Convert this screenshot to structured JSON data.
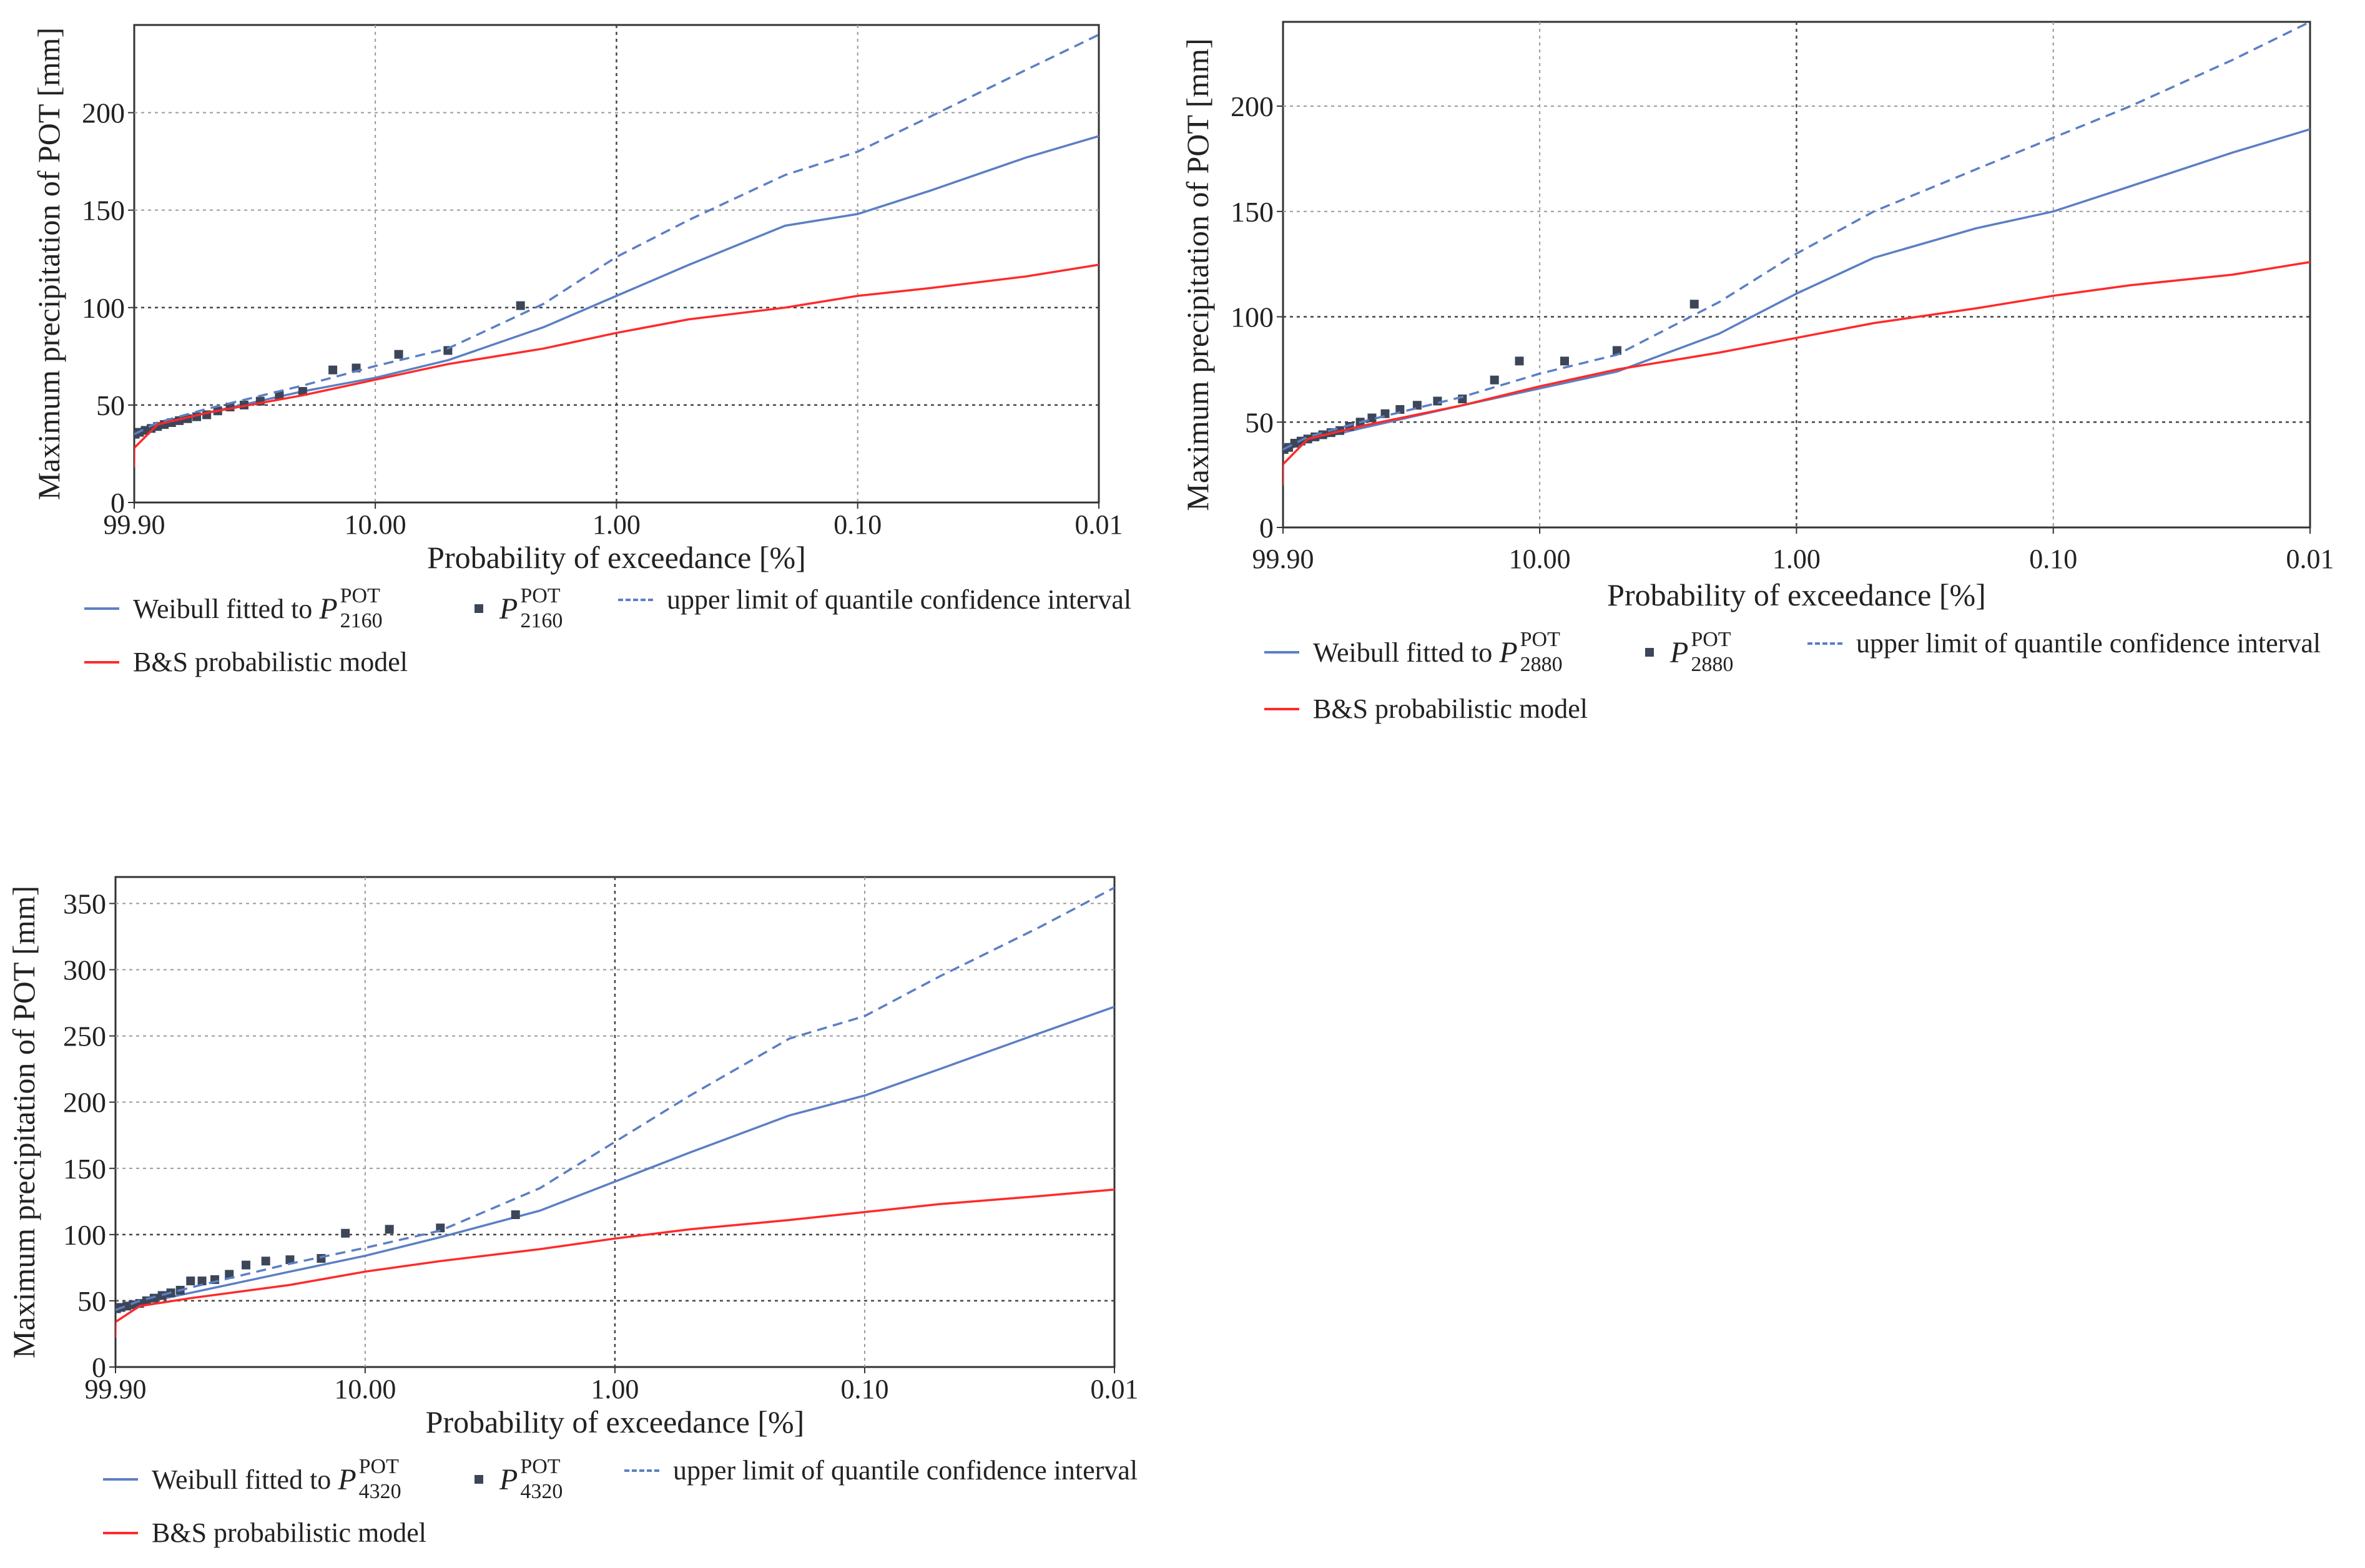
{
  "colors": {
    "weibull": "#5b7fc4",
    "bs_model": "#ff2a2a",
    "ci_upper": "#5b7fc4",
    "points": "#3c4658",
    "grid": "#9a9a9a"
  },
  "x_ticks": [
    "99.90",
    "10.00",
    "1.00",
    "0.10",
    "0.01"
  ],
  "panels": [
    {
      "legend": {
        "weibull_label": "Weibull",
        "weibull_fitted": "fitted to",
        "symbol": "P",
        "sup": "POT",
        "sub": "2160",
        "ci_label": "upper limit of quantile confidence interval",
        "bs_label": "B&S probabilistic model"
      },
      "chart_data": {
        "type": "line",
        "xlabel": "Probability of exceedance [%]",
        "ylabel": "Maximum precipitation of POT [mm]",
        "xscale": "probability (Weibull paper)",
        "xlim": [
          99.9,
          0.01
        ],
        "ylim": [
          0,
          245
        ],
        "yticks": [
          0,
          50,
          100,
          150,
          200
        ],
        "grid": true,
        "series": [
          {
            "name": "Weibull fitted to P_2160^POT",
            "type": "line",
            "style": "solid",
            "x": [
              99.9,
              80,
              50,
              20,
              10,
              5,
              2,
              1,
              0.5,
              0.2,
              0.1,
              0.05,
              0.02,
              0.01
            ],
            "y": [
              34,
              40,
              46,
              57,
              64,
              73,
              90,
              106,
              122,
              142,
              148,
              160,
              177,
              188
            ]
          },
          {
            "name": "P_2160^POT",
            "type": "scatter",
            "x": [
              99,
              95,
              90,
              85,
              80,
              75,
              70,
              65,
              60,
              55,
              50,
              45,
              40,
              35,
              30,
              25,
              20,
              15,
              12,
              8,
              5,
              2.5
            ],
            "y": [
              35,
              36,
              37,
              38,
              39,
              40,
              41,
              42,
              43,
              44,
              45,
              47,
              49,
              50,
              52,
              55,
              57,
              68,
              69,
              76,
              78,
              101
            ]
          },
          {
            "name": "upper limit of quantile confidence interval",
            "type": "line",
            "style": "dashed",
            "x": [
              99.9,
              80,
              50,
              20,
              10,
              5,
              2,
              1,
              0.5,
              0.2,
              0.1,
              0.05,
              0.02,
              0.01
            ],
            "y": [
              35,
              41,
              48,
              60,
              70,
              79,
              102,
              126,
              145,
              168,
              180,
              198,
              222,
              240
            ]
          },
          {
            "name": "B&S probabilistic model",
            "type": "line",
            "style": "solid",
            "x": [
              99.99,
              99.9,
              80,
              50,
              20,
              10,
              5,
              2,
              1,
              0.5,
              0.2,
              0.1,
              0.05,
              0.02,
              0.01
            ],
            "y": [
              18,
              28,
              40,
              46,
              55,
              63,
              71,
              79,
              87,
              94,
              100,
              106,
              110,
              116,
              122
            ]
          }
        ]
      }
    },
    {
      "legend": {
        "weibull_label": "Weibull",
        "weibull_fitted": "fitted to",
        "symbol": "P",
        "sup": "POT",
        "sub": "2880",
        "ci_label": "upper limit of quantile confidence interval",
        "bs_label": "B&S probabilistic model"
      },
      "chart_data": {
        "type": "line",
        "xlabel": "Probability of exceedance [%]",
        "ylabel": "Maximum precipitation of POT [mm]",
        "xscale": "probability (Weibull paper)",
        "xlim": [
          99.9,
          0.01
        ],
        "ylim": [
          0,
          240
        ],
        "yticks": [
          0,
          50,
          100,
          150,
          200
        ],
        "grid": true,
        "series": [
          {
            "name": "Weibull fitted to P_2880^POT",
            "type": "line",
            "style": "solid",
            "x": [
              99.9,
              80,
              50,
              20,
              10,
              5,
              2,
              1,
              0.5,
              0.2,
              0.1,
              0.05,
              0.02,
              0.01
            ],
            "y": [
              36,
              41,
              47,
              58,
              66,
              74,
              92,
              111,
              128,
              142,
              150,
              162,
              178,
              189
            ]
          },
          {
            "name": "P_2880^POT",
            "type": "scatter",
            "x": [
              99,
              95,
              90,
              85,
              80,
              75,
              70,
              65,
              60,
              55,
              50,
              45,
              40,
              35,
              30,
              25,
              20,
              15,
              12,
              8,
              5,
              2.5
            ],
            "y": [
              37,
              38,
              40,
              41,
              42,
              43,
              44,
              45,
              46,
              48,
              50,
              52,
              54,
              56,
              58,
              60,
              61,
              70,
              79,
              79,
              84,
              106
            ]
          },
          {
            "name": "upper limit of quantile confidence interval",
            "type": "line",
            "style": "dashed",
            "x": [
              99.9,
              80,
              50,
              20,
              10,
              5,
              2,
              1,
              0.5,
              0.2,
              0.1,
              0.05,
              0.02,
              0.01
            ],
            "y": [
              37,
              43,
              50,
              62,
              73,
              82,
              107,
              130,
              150,
              170,
              185,
              200,
              222,
              240
            ]
          },
          {
            "name": "B&S probabilistic model",
            "type": "line",
            "style": "solid",
            "x": [
              99.99,
              99.9,
              80,
              50,
              20,
              10,
              5,
              2,
              1,
              0.5,
              0.2,
              0.1,
              0.05,
              0.02,
              0.01
            ],
            "y": [
              20,
              30,
              42,
              48,
              58,
              67,
              75,
              83,
              90,
              97,
              104,
              110,
              115,
              120,
              126
            ]
          }
        ]
      }
    },
    {
      "legend": {
        "weibull_label": "Weibull",
        "weibull_fitted": "fitted to",
        "symbol": "P",
        "sup": "POT",
        "sub": "4320",
        "ci_label": "upper limit of quantile confidence interval",
        "bs_label": "B&S probabilistic model"
      },
      "chart_data": {
        "type": "line",
        "xlabel": "Probability of exceedance [%]",
        "ylabel": "Maximum precipitation of POT [mm]",
        "xscale": "probability (Weibull paper)",
        "xlim": [
          99.9,
          0.01
        ],
        "ylim": [
          0,
          370
        ],
        "yticks": [
          0,
          50,
          100,
          150,
          200,
          250,
          300,
          350
        ],
        "grid": true,
        "series": [
          {
            "name": "Weibull fitted to P_4320^POT",
            "type": "line",
            "style": "solid",
            "x": [
              99.9,
              80,
              50,
              20,
              10,
              5,
              2,
              1,
              0.5,
              0.2,
              0.1,
              0.05,
              0.02,
              0.01
            ],
            "y": [
              42,
              48,
              56,
              72,
              84,
              98,
              118,
              140,
              162,
              190,
              205,
              225,
              252,
              272
            ]
          },
          {
            "name": "P_4320^POT",
            "type": "scatter",
            "x": [
              99,
              95,
              90,
              85,
              80,
              75,
              70,
              65,
              60,
              55,
              50,
              45,
              40,
              35,
              30,
              25,
              20,
              15,
              12,
              8,
              5,
              2.5
            ],
            "y": [
              44,
              45,
              46,
              47,
              48,
              50,
              52,
              54,
              56,
              58,
              65,
              65,
              66,
              70,
              77,
              80,
              81,
              82,
              101,
              104,
              105,
              115
            ]
          },
          {
            "name": "upper limit of quantile confidence interval",
            "type": "line",
            "style": "dashed",
            "x": [
              99.9,
              80,
              50,
              20,
              10,
              5,
              2,
              1,
              0.5,
              0.2,
              0.1,
              0.05,
              0.02,
              0.01
            ],
            "y": [
              43,
              50,
              60,
              78,
              90,
              103,
              135,
              170,
              205,
              248,
              265,
              295,
              332,
              362
            ]
          },
          {
            "name": "B&S probabilistic model",
            "type": "line",
            "style": "solid",
            "x": [
              99.99,
              99.9,
              80,
              50,
              20,
              10,
              5,
              2,
              1,
              0.5,
              0.2,
              0.1,
              0.05,
              0.02,
              0.01
            ],
            "y": [
              22,
              34,
              46,
              52,
              62,
              72,
              80,
              89,
              97,
              104,
              111,
              117,
              123,
              129,
              134
            ]
          }
        ]
      }
    }
  ]
}
